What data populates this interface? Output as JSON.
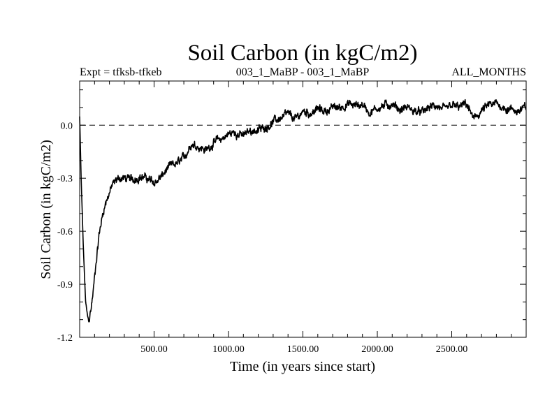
{
  "chart_data": {
    "type": "line",
    "title": "Soil Carbon (in kgC/m2)",
    "subtitle_left": "Expt = tfksb-tfkeb",
    "subtitle_center": "003_1_MaBP - 003_1_MaBP",
    "subtitle_right": "ALL_MONTHS",
    "xlabel": "Time (in years since start)",
    "ylabel": "Soil Carbon (in kgC/m2)",
    "xlim": [
      0,
      3000
    ],
    "ylim": [
      -1.2,
      0.25
    ],
    "x_ticks": [
      500,
      1000,
      1500,
      2000,
      2500
    ],
    "x_tick_labels": [
      "500.00",
      "1000.00",
      "1500.00",
      "2000.00",
      "2500.00"
    ],
    "y_ticks": [
      -1.2,
      -0.9,
      -0.6,
      -0.3,
      0.0
    ],
    "y_tick_labels": [
      "-1.2",
      "-0.9",
      "-0.6",
      "-0.3",
      "0.0"
    ],
    "reference_line": {
      "y": 0.0,
      "style": "dashed"
    },
    "series": [
      {
        "name": "Soil Carbon",
        "x": [
          0,
          10,
          25,
          40,
          55,
          65,
          75,
          90,
          110,
          130,
          160,
          190,
          220,
          260,
          300,
          350,
          400,
          450,
          500,
          550,
          600,
          650,
          700,
          750,
          800,
          850,
          900,
          950,
          1000,
          1050,
          1100,
          1150,
          1200,
          1250,
          1300,
          1350,
          1400,
          1450,
          1500,
          1550,
          1600,
          1650,
          1700,
          1750,
          1800,
          1850,
          1900,
          1950,
          2000,
          2050,
          2100,
          2150,
          2200,
          2250,
          2300,
          2350,
          2400,
          2450,
          2500,
          2550,
          2600,
          2650,
          2700,
          2750,
          2800,
          2850,
          2900,
          2950,
          3000
        ],
        "values": [
          0.05,
          -0.3,
          -0.7,
          -1.0,
          -1.09,
          -1.1,
          -1.05,
          -0.95,
          -0.78,
          -0.62,
          -0.48,
          -0.4,
          -0.34,
          -0.3,
          -0.3,
          -0.31,
          -0.29,
          -0.3,
          -0.33,
          -0.29,
          -0.24,
          -0.22,
          -0.19,
          -0.1,
          -0.12,
          -0.14,
          -0.1,
          -0.08,
          -0.05,
          -0.04,
          -0.06,
          -0.03,
          -0.03,
          -0.01,
          0.02,
          0.04,
          0.06,
          0.03,
          0.08,
          0.07,
          0.09,
          0.08,
          0.1,
          0.1,
          0.12,
          0.11,
          0.12,
          0.07,
          0.1,
          0.11,
          0.12,
          0.09,
          0.1,
          0.08,
          0.07,
          0.1,
          0.11,
          0.08,
          0.11,
          0.1,
          0.12,
          0.03,
          0.08,
          0.11,
          0.12,
          0.1,
          0.09,
          0.08,
          0.1
        ]
      }
    ]
  }
}
